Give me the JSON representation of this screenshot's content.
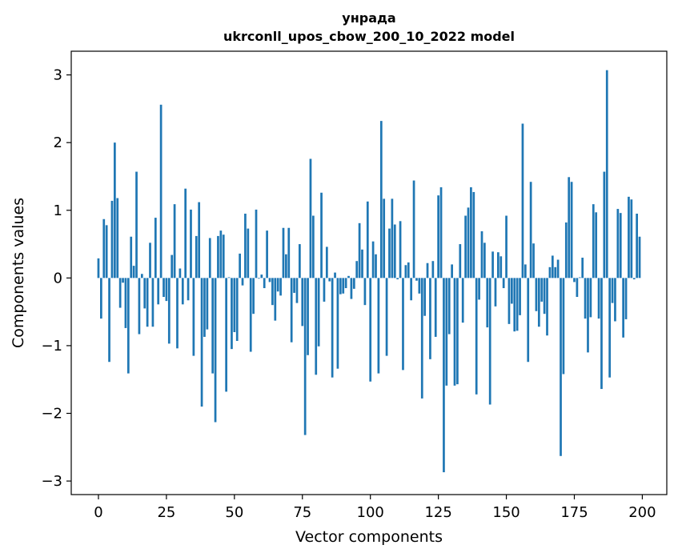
{
  "chart_data": {
    "type": "bar",
    "title_line1": "унрада",
    "title_line2": "ukrconll_upos_cbow_200_10_2022 model",
    "xlabel": "Vector components",
    "ylabel": "Components values",
    "xlim": [
      -10,
      209
    ],
    "ylim": [
      -3.2,
      3.35
    ],
    "x_ticks": [
      0,
      25,
      50,
      75,
      100,
      125,
      150,
      175,
      200
    ],
    "y_ticks": [
      -3,
      -2,
      -1,
      0,
      1,
      2,
      3
    ],
    "y_tick_labels": [
      "−3",
      "−2",
      "−1",
      "0",
      "1",
      "2",
      "3"
    ],
    "bar_color": "#1f77b4",
    "grid": false,
    "x": [
      0,
      1,
      2,
      3,
      4,
      5,
      6,
      7,
      8,
      9,
      10,
      11,
      12,
      13,
      14,
      15,
      16,
      17,
      18,
      19,
      20,
      21,
      22,
      23,
      24,
      25,
      26,
      27,
      28,
      29,
      30,
      31,
      32,
      33,
      34,
      35,
      36,
      37,
      38,
      39,
      40,
      41,
      42,
      43,
      44,
      45,
      46,
      47,
      48,
      49,
      50,
      51,
      52,
      53,
      54,
      55,
      56,
      57,
      58,
      59,
      60,
      61,
      62,
      63,
      64,
      65,
      66,
      67,
      68,
      69,
      70,
      71,
      72,
      73,
      74,
      75,
      76,
      77,
      78,
      79,
      80,
      81,
      82,
      83,
      84,
      85,
      86,
      87,
      88,
      89,
      90,
      91,
      92,
      93,
      94,
      95,
      96,
      97,
      98,
      99,
      100,
      101,
      102,
      103,
      104,
      105,
      106,
      107,
      108,
      109,
      110,
      111,
      112,
      113,
      114,
      115,
      116,
      117,
      118,
      119,
      120,
      121,
      122,
      123,
      124,
      125,
      126,
      127,
      128,
      129,
      130,
      131,
      132,
      133,
      134,
      135,
      136,
      137,
      138,
      139,
      140,
      141,
      142,
      143,
      144,
      145,
      146,
      147,
      148,
      149,
      150,
      151,
      152,
      153,
      154,
      155,
      156,
      157,
      158,
      159,
      160,
      161,
      162,
      163,
      164,
      165,
      166,
      167,
      168,
      169,
      170,
      171,
      172,
      173,
      174,
      175,
      176,
      177,
      178,
      179,
      180,
      181,
      182,
      183,
      184,
      185,
      186,
      187,
      188,
      189,
      190,
      191,
      192,
      193,
      194,
      195,
      196,
      197,
      198,
      199
    ],
    "values": [
      0.29,
      -0.6,
      0.87,
      0.78,
      -1.24,
      1.14,
      2.0,
      1.18,
      -0.44,
      -0.07,
      -0.74,
      -1.41,
      0.61,
      0.18,
      1.57,
      -0.83,
      0.06,
      -0.45,
      -0.72,
      0.52,
      -0.72,
      0.89,
      -0.39,
      2.56,
      -0.28,
      -0.34,
      -0.97,
      0.34,
      1.09,
      -1.04,
      0.14,
      -0.39,
      1.32,
      -0.33,
      1.01,
      -1.15,
      0.62,
      1.12,
      -1.9,
      -0.87,
      -0.76,
      0.59,
      -1.41,
      -2.13,
      0.62,
      0.7,
      0.64,
      -1.68,
      0.01,
      -1.05,
      -0.8,
      -0.93,
      0.36,
      -0.11,
      0.95,
      0.73,
      -1.09,
      -0.53,
      1.01,
      -0.01,
      0.05,
      -0.15,
      0.7,
      -0.06,
      -0.4,
      -0.63,
      -0.2,
      -0.26,
      0.74,
      0.35,
      0.74,
      -0.95,
      -0.22,
      -0.37,
      0.5,
      -0.71,
      -2.32,
      -1.14,
      1.76,
      0.92,
      -1.43,
      -1.01,
      1.26,
      -0.35,
      0.46,
      -0.05,
      -1.47,
      0.08,
      -1.34,
      -0.24,
      -0.23,
      -0.15,
      0.03,
      -0.31,
      -0.16,
      0.25,
      0.81,
      0.42,
      -0.4,
      1.13,
      -1.53,
      0.54,
      0.35,
      -1.41,
      2.32,
      1.17,
      -1.15,
      0.73,
      1.17,
      0.79,
      -0.02,
      0.84,
      -1.36,
      0.19,
      0.23,
      -0.33,
      1.44,
      -0.04,
      -0.23,
      -1.78,
      -0.56,
      0.22,
      -1.2,
      0.25,
      -0.87,
      1.22,
      1.34,
      -2.87,
      -1.59,
      -0.83,
      0.2,
      -1.59,
      -1.57,
      0.5,
      -0.66,
      0.92,
      1.04,
      1.34,
      1.27,
      -1.72,
      -0.32,
      0.69,
      0.52,
      -0.73,
      -1.87,
      0.39,
      -0.42,
      0.38,
      0.32,
      -0.15,
      0.92,
      -0.68,
      -0.38,
      -0.79,
      -0.78,
      -0.55,
      2.28,
      0.2,
      -1.24,
      1.42,
      0.51,
      -0.49,
      -0.72,
      -0.35,
      -0.53,
      -0.85,
      0.16,
      0.33,
      0.16,
      0.27,
      -2.63,
      -1.42,
      0.82,
      1.49,
      1.42,
      -0.06,
      -0.28,
      0.01,
      0.3,
      -0.6,
      -1.1,
      -0.58,
      1.09,
      0.97,
      -0.6,
      -1.64,
      1.57,
      3.07,
      -1.47,
      -0.37,
      -0.64,
      1.02,
      0.96,
      -0.88,
      -0.61,
      1.2,
      1.16,
      -0.02,
      0.95,
      0.61
    ]
  }
}
